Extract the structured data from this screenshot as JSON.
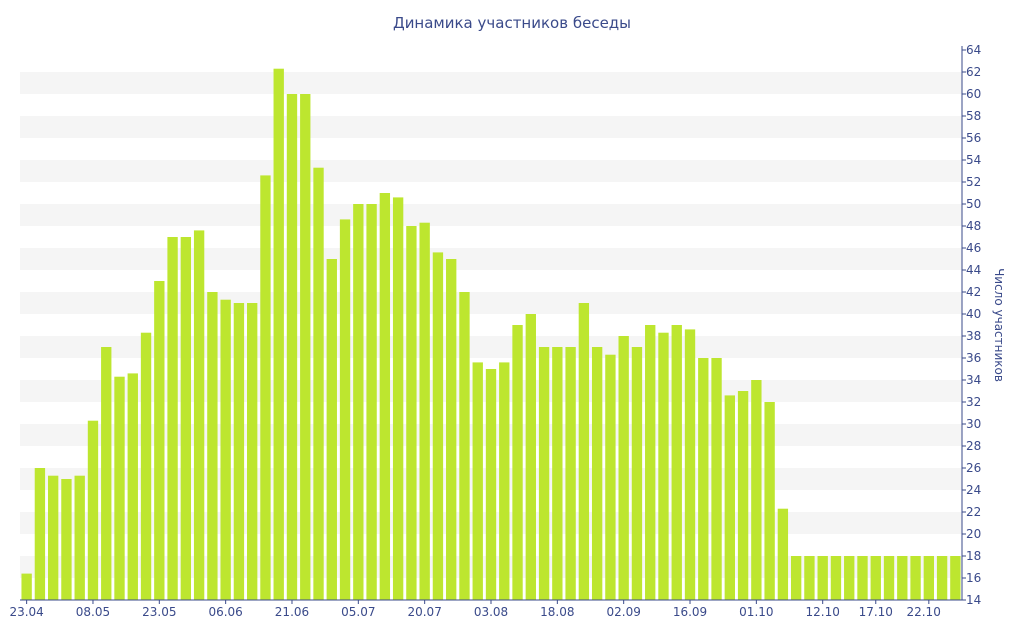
{
  "chart_data": {
    "type": "bar",
    "title": "Динамика участников беседы",
    "xlabel": "",
    "ylabel": "Число участников",
    "ylim": [
      14,
      64
    ],
    "yticks": [
      14,
      16,
      18,
      20,
      22,
      24,
      26,
      28,
      30,
      32,
      34,
      36,
      38,
      40,
      42,
      44,
      46,
      48,
      50,
      52,
      54,
      56,
      58,
      60,
      62,
      64
    ],
    "y_axis_side": "right",
    "grid": "alternating horizontal bands",
    "legend": "none",
    "bar_color": "#bde62f",
    "band_color": "#f5f5f5",
    "text_color": "#3a4a8a",
    "xtick_labels": [
      "23.04",
      "08.05",
      "23.05",
      "06.06",
      "21.06",
      "05.07",
      "20.07",
      "03.08",
      "18.08",
      "02.09",
      "16.09",
      "01.10",
      "12.10",
      "17.10",
      "22.10"
    ],
    "xtick_positions": [
      0,
      5,
      10,
      15,
      20,
      25,
      30,
      35,
      40,
      45,
      50,
      55,
      60,
      64,
      68
    ],
    "values": [
      16.4,
      26,
      25.3,
      25,
      25.3,
      30.3,
      37,
      34.3,
      34.6,
      38.3,
      43,
      47,
      47,
      47.6,
      42,
      41.3,
      41,
      41,
      52.6,
      62.3,
      60,
      60,
      53.3,
      45,
      48.6,
      50,
      50,
      51,
      50.6,
      48,
      48.3,
      45.6,
      45,
      42,
      35.6,
      35,
      35.6,
      39,
      40,
      37,
      37,
      37,
      41,
      37,
      36.3,
      38,
      37,
      39,
      38.3,
      39,
      38.6,
      36,
      36,
      32.6,
      33,
      34,
      32,
      22.3,
      18,
      18,
      18,
      18,
      18,
      18,
      18,
      18,
      18,
      18,
      18,
      18,
      18
    ]
  }
}
